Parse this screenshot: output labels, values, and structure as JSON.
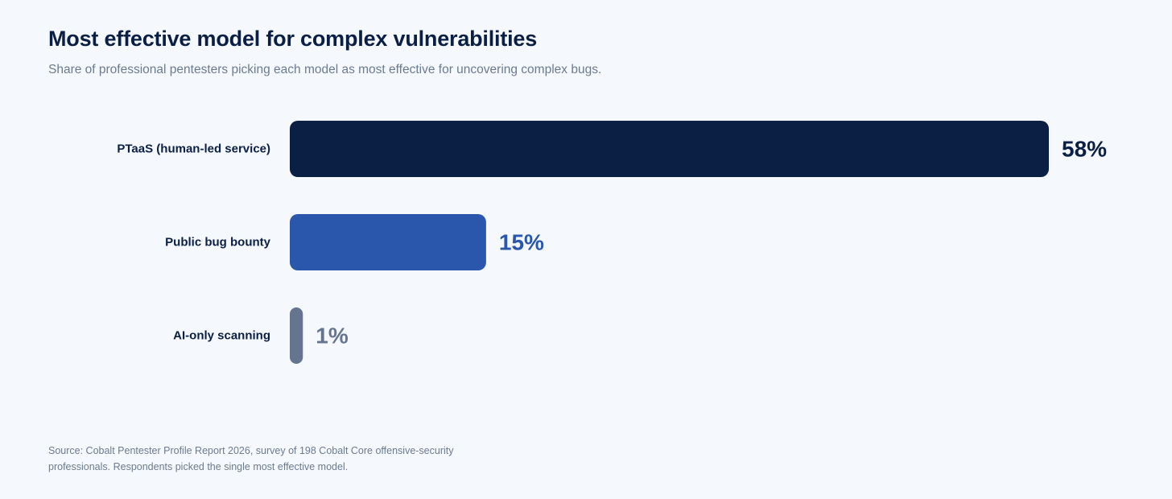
{
  "header": {
    "title": "Most effective model for complex vulnerabilities",
    "subtitle": "Share of professional pentesters picking each model as most effective for uncovering complex bugs."
  },
  "footer": {
    "source_line1": "Source: Cobalt Pentester Profile Report 2026, survey of 198 Cobalt Core offensive-security",
    "source_line2": "professionals. Respondents picked the single most effective model."
  },
  "chart_data": {
    "type": "bar",
    "orientation": "horizontal",
    "title": "Most effective model for complex vulnerabilities",
    "subtitle": "Share of professional pentesters picking each model as most effective for uncovering complex bugs.",
    "categories": [
      "PTaaS (human-led service)",
      "Public bug bounty",
      "AI-only scanning"
    ],
    "values": [
      58,
      15,
      1
    ],
    "value_labels": [
      "58%",
      "15%",
      "1%"
    ],
    "unit": "%",
    "colors": [
      "#0b1f45",
      "#2a56ab",
      "#65758f"
    ],
    "xlim": [
      0,
      58
    ],
    "grid": false,
    "legend": "none"
  }
}
